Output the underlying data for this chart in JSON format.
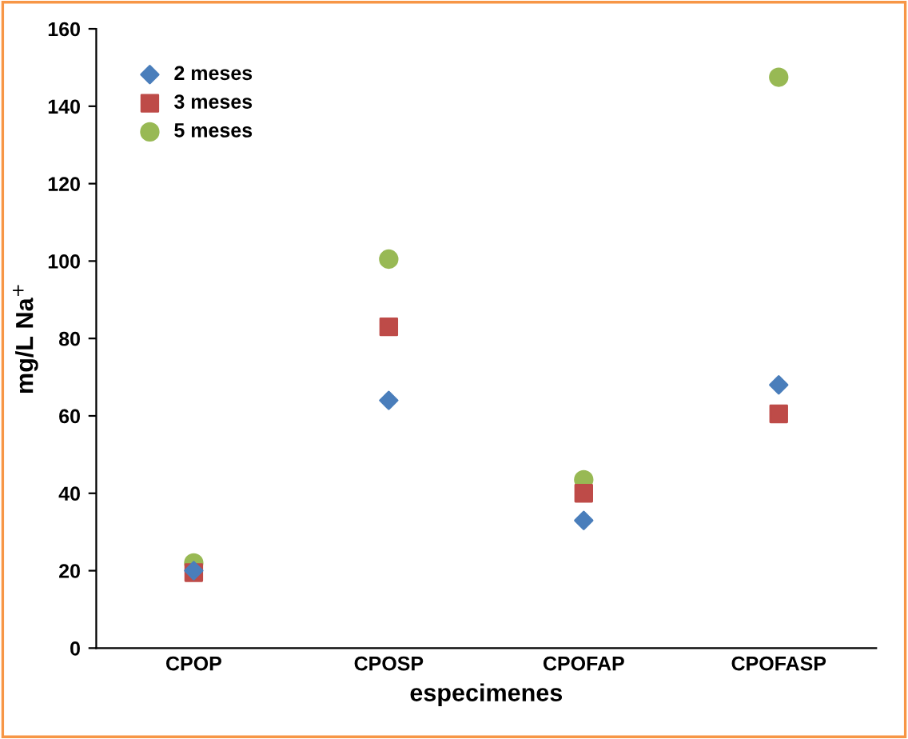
{
  "chart_data": {
    "type": "scatter",
    "xlabel": "especimenes",
    "ylabel": "mg/L Na$^{+}$",
    "categories": [
      "CPOP",
      "CPOSP",
      "CPOFAP",
      "CPOFASP"
    ],
    "series": [
      {
        "name": "2 meses",
        "color": "#4a7ebb",
        "marker": "diamond",
        "values": [
          20,
          64,
          33,
          68
        ]
      },
      {
        "name": "3 meses",
        "color": "#be4b48",
        "marker": "square",
        "values": [
          19.5,
          83,
          40,
          60.5
        ]
      },
      {
        "name": "5 meses",
        "color": "#98b954",
        "marker": "circle",
        "values": [
          22,
          100.5,
          43.5,
          147.5
        ]
      }
    ],
    "ylim": [
      0,
      160
    ],
    "yticks": [
      0,
      20,
      40,
      60,
      80,
      100,
      120,
      140,
      160
    ],
    "grid": false,
    "legend": "top left"
  }
}
